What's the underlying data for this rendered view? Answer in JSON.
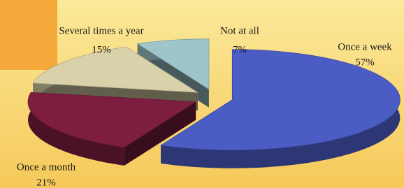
{
  "chart_data": {
    "type": "pie",
    "categories": [
      "Once a week",
      "Once a month",
      "Several times a year",
      "Not at all"
    ],
    "values": [
      57,
      21,
      15,
      7
    ],
    "value_labels": [
      "57%",
      "21%",
      "15%",
      "7%"
    ],
    "colors": [
      "#4b5cc4",
      "#7d1d40",
      "#d9d1a9",
      "#9ec6ca"
    ]
  }
}
